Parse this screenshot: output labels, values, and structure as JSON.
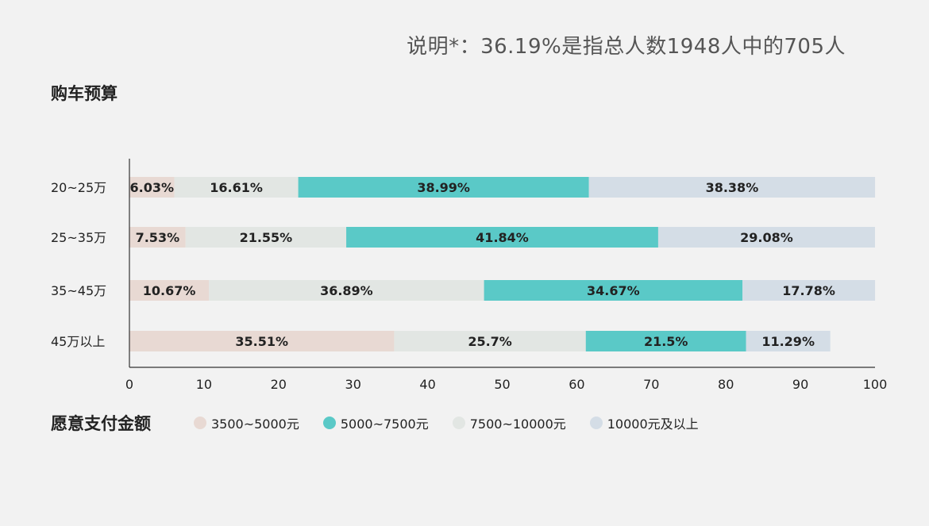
{
  "note": "说明*：36.19%是指总人数1948人中的705人",
  "chart_data": {
    "type": "bar",
    "orientation": "horizontal",
    "stacked": true,
    "ylabel": "购车预算",
    "categories": [
      "20~25万",
      "25~35万",
      "35~45万",
      "45万以上"
    ],
    "series": [
      {
        "name": "3500~5000元",
        "color": "#e8d9d3",
        "values": [
          6.03,
          7.53,
          10.67,
          35.51
        ]
      },
      {
        "name": "7500~10000元",
        "color": "#e2e6e3",
        "values": [
          16.61,
          21.55,
          36.89,
          25.7
        ]
      },
      {
        "name": "5000~7500元",
        "color": "#5ac9c7",
        "values": [
          38.99,
          41.84,
          34.67,
          21.5
        ]
      },
      {
        "name": "10000元及以上",
        "color": "#d4dde6",
        "values": [
          38.38,
          29.08,
          17.78,
          11.29
        ]
      }
    ],
    "data_labels": [
      [
        "6.03%",
        "16.61%",
        "38.99%",
        "38.38%"
      ],
      [
        "7.53%",
        "21.55%",
        "41.84%",
        "29.08%"
      ],
      [
        "10.67%",
        "36.89%",
        "34.67%",
        "17.78%"
      ],
      [
        "35.51%",
        "25.7%",
        "21.5%",
        "11.29%"
      ]
    ],
    "xlim": [
      0,
      100
    ],
    "xticks": [
      0,
      10,
      20,
      30,
      40,
      50,
      60,
      70,
      80,
      90,
      100
    ],
    "grid": false
  },
  "legend": {
    "title": "愿意支付金额",
    "items": [
      {
        "label": "3500~5000元",
        "color": "#e8d9d3"
      },
      {
        "label": "5000~7500元",
        "color": "#5ac9c7"
      },
      {
        "label": "7500~10000元",
        "color": "#e2e6e3"
      },
      {
        "label": "10000元及以上",
        "color": "#d4dde6"
      }
    ]
  }
}
